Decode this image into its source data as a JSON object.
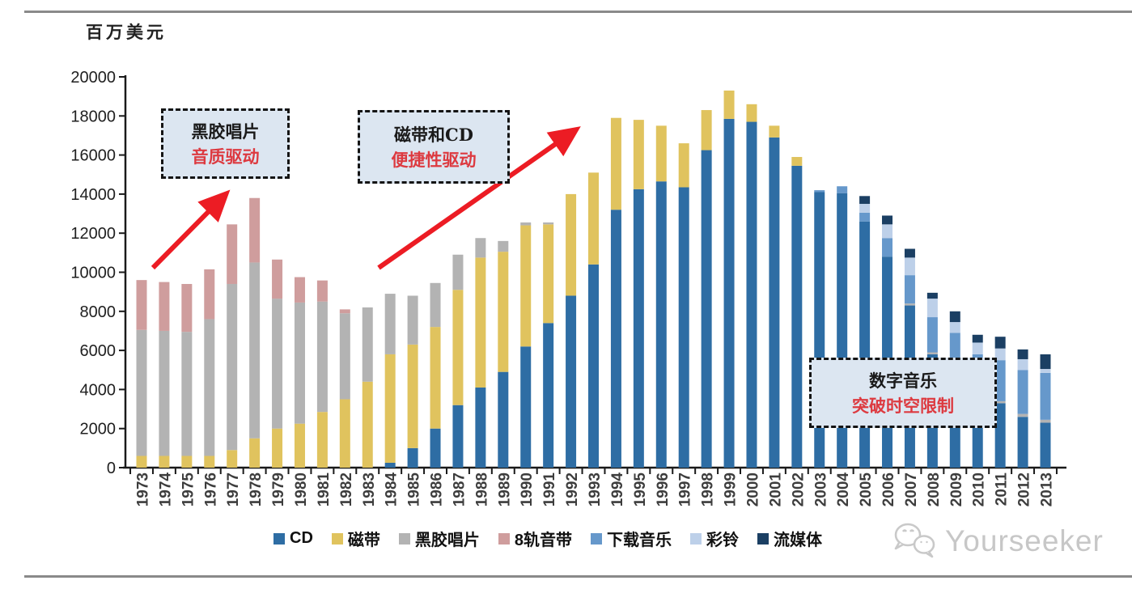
{
  "chart_data": {
    "type": "bar",
    "stacked": true,
    "ylabel": "百万美元",
    "xlabel": "",
    "ylim": [
      0,
      20000
    ],
    "ytick_step": 2000,
    "grid": false,
    "legend_position": "bottom",
    "categories": [
      1973,
      1974,
      1975,
      1976,
      1977,
      1978,
      1979,
      1980,
      1981,
      1982,
      1983,
      1984,
      1985,
      1986,
      1987,
      1988,
      1989,
      1990,
      1991,
      1992,
      1993,
      1994,
      1995,
      1996,
      1997,
      1998,
      1999,
      2000,
      2001,
      2002,
      2003,
      2004,
      2005,
      2006,
      2007,
      2008,
      2009,
      2010,
      2011,
      2012,
      2013
    ],
    "series": [
      {
        "name": "CD",
        "color": "#2e6da4",
        "values": [
          0,
          0,
          0,
          0,
          0,
          0,
          0,
          0,
          0,
          0,
          0,
          250,
          1000,
          2000,
          3200,
          4100,
          4900,
          6200,
          7400,
          8800,
          10400,
          13200,
          14250,
          14650,
          14350,
          16250,
          17850,
          17700,
          16900,
          15450,
          14100,
          14050,
          12600,
          10800,
          8300,
          5800,
          4700,
          3400,
          3300,
          2600,
          2300
        ]
      },
      {
        "name": "磁带",
        "color": "#e0c35e",
        "values": [
          600,
          600,
          600,
          600,
          900,
          1500,
          2000,
          2250,
          2850,
          3500,
          4400,
          5550,
          5300,
          5200,
          5900,
          6650,
          6150,
          6200,
          5050,
          5200,
          4700,
          4700,
          3550,
          2850,
          2250,
          2050,
          1450,
          900,
          600,
          450,
          0,
          0,
          0,
          0,
          0,
          0,
          0,
          0,
          0,
          0,
          0
        ]
      },
      {
        "name": "黑胶唱片",
        "color": "#b3b3b3",
        "values": [
          6450,
          6400,
          6350,
          7000,
          8500,
          9000,
          6650,
          6200,
          5650,
          4400,
          3800,
          3100,
          2500,
          2250,
          1800,
          1000,
          550,
          150,
          100,
          0,
          0,
          0,
          0,
          0,
          0,
          0,
          0,
          0,
          0,
          0,
          0,
          0,
          0,
          0,
          100,
          100,
          100,
          100,
          100,
          150,
          150
        ]
      },
      {
        "name": "8轨音带",
        "color": "#cf9d9d",
        "values": [
          2550,
          2500,
          2450,
          2550,
          3050,
          3300,
          2000,
          1300,
          1080,
          200,
          0,
          0,
          0,
          0,
          0,
          0,
          0,
          0,
          0,
          0,
          0,
          0,
          0,
          0,
          0,
          0,
          0,
          0,
          0,
          0,
          0,
          0,
          0,
          0,
          0,
          0,
          0,
          0,
          0,
          0,
          0
        ]
      },
      {
        "name": "下载音乐",
        "color": "#6698cb",
        "values": [
          0,
          0,
          0,
          0,
          0,
          0,
          0,
          0,
          0,
          0,
          0,
          0,
          0,
          0,
          0,
          0,
          0,
          0,
          0,
          0,
          0,
          0,
          0,
          0,
          0,
          0,
          0,
          0,
          0,
          0,
          100,
          350,
          450,
          950,
          1450,
          1800,
          2100,
          2300,
          2100,
          2250,
          2400
        ]
      },
      {
        "name": "彩铃",
        "color": "#bdd0e9",
        "values": [
          0,
          0,
          0,
          0,
          0,
          0,
          0,
          0,
          0,
          0,
          0,
          0,
          0,
          0,
          0,
          0,
          0,
          0,
          0,
          0,
          0,
          0,
          0,
          0,
          0,
          0,
          0,
          0,
          0,
          0,
          0,
          0,
          450,
          700,
          900,
          950,
          550,
          600,
          600,
          550,
          200
        ]
      },
      {
        "name": "流媒体",
        "color": "#1b3f63",
        "values": [
          0,
          0,
          0,
          0,
          0,
          0,
          0,
          0,
          0,
          0,
          0,
          0,
          0,
          0,
          0,
          0,
          0,
          0,
          0,
          0,
          0,
          0,
          0,
          0,
          0,
          0,
          0,
          0,
          0,
          0,
          0,
          0,
          400,
          450,
          450,
          300,
          550,
          400,
          600,
          500,
          750
        ]
      }
    ],
    "yticks": [
      0,
      2000,
      4000,
      6000,
      8000,
      10000,
      12000,
      14000,
      16000,
      18000,
      20000
    ]
  },
  "annotations": {
    "vinyl": {
      "line1": "黑胶唱片",
      "line2": "音质驱动"
    },
    "cd": {
      "line1": "磁带和CD",
      "line2": "便捷性驱动"
    },
    "digital": {
      "line1": "数字音乐",
      "line2": "突破时空限制"
    }
  },
  "colors": {
    "arrow_red": "#ec1c24",
    "annotation_red": "#dd3a40",
    "annotation_bg": "#dce6f1",
    "axis": "#1a1a1a",
    "rule_gray": "#8a8a8a",
    "watermark_gray": "#c7c7c7"
  },
  "watermark": {
    "text": "Yourseeker"
  }
}
